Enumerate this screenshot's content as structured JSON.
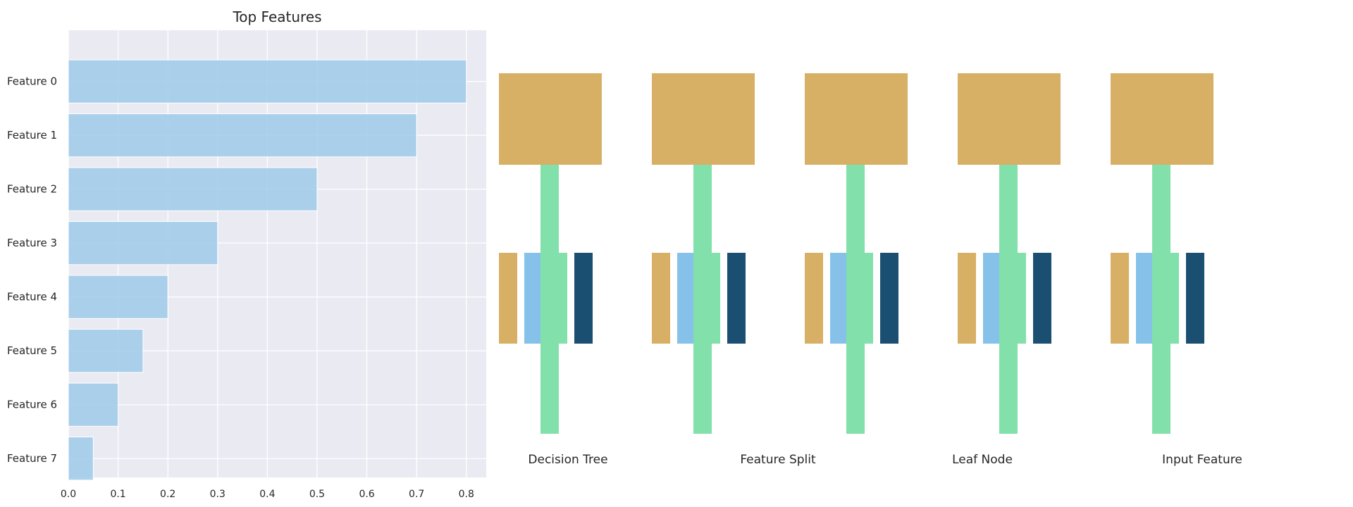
{
  "chart_data": {
    "type": "bar",
    "orientation": "horizontal",
    "title": "Top Features",
    "categories": [
      "Feature 0",
      "Feature 1",
      "Feature 2",
      "Feature 3",
      "Feature 4",
      "Feature 5",
      "Feature 6",
      "Feature 7"
    ],
    "values": [
      0.8,
      0.7,
      0.5,
      0.3,
      0.2,
      0.15,
      0.1,
      0.05
    ],
    "xlabel": "",
    "ylabel": "",
    "xlim": [
      0,
      0.84
    ],
    "xticks": [
      "0.0",
      "0.1",
      "0.2",
      "0.3",
      "0.4",
      "0.5",
      "0.6",
      "0.7",
      "0.8"
    ],
    "grid": true,
    "colors": {
      "bar": "#9ecae9",
      "plot_background": "#eaeaf2",
      "grid": "#ffffff"
    }
  },
  "diagram": {
    "node_count": 5,
    "colors": {
      "node": "#d8b065",
      "stem": "#82e0aa",
      "swatch_orange": "#d8b065",
      "swatch_lightblue": "#85c1e9",
      "swatch_dark": "#1b4f72"
    },
    "legend": [
      "Decision Tree",
      "Feature Split",
      "Leaf Node",
      "Input Feature"
    ]
  }
}
